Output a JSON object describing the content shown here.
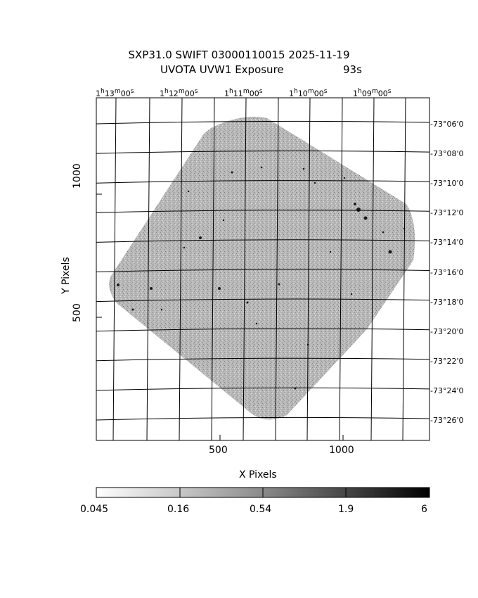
{
  "title": {
    "line1": "SXP31.0 SWIFT 03000110015 2025-11-19",
    "line2_left": "UVOTA UVW1 Exposure",
    "line2_right": "93s"
  },
  "axes": {
    "xlabel": "X Pixels",
    "ylabel": "Y Pixels",
    "x_ticks": [
      "500",
      "1000"
    ],
    "y_ticks": [
      "1000",
      "500"
    ],
    "ra_ticks": [
      {
        "h": "1",
        "m": "13",
        "s": "00"
      },
      {
        "h": "1",
        "m": "12",
        "s": "00"
      },
      {
        "h": "1",
        "m": "11",
        "s": "00"
      },
      {
        "h": "1",
        "m": "10",
        "s": "00"
      },
      {
        "h": "1",
        "m": "09",
        "s": "00"
      }
    ],
    "dec_ticks": [
      "-73°06'0",
      "-73°08'0",
      "-73°10'0",
      "-73°12'0",
      "-73°14'0",
      "-73°16'0",
      "-73°18'0",
      "-73°20'0",
      "-73°22'0",
      "-73°24'0",
      "-73°26'0"
    ]
  },
  "colorbar": {
    "labels": [
      "0.045",
      "0.16",
      "0.54",
      "1.9",
      "6"
    ]
  }
}
